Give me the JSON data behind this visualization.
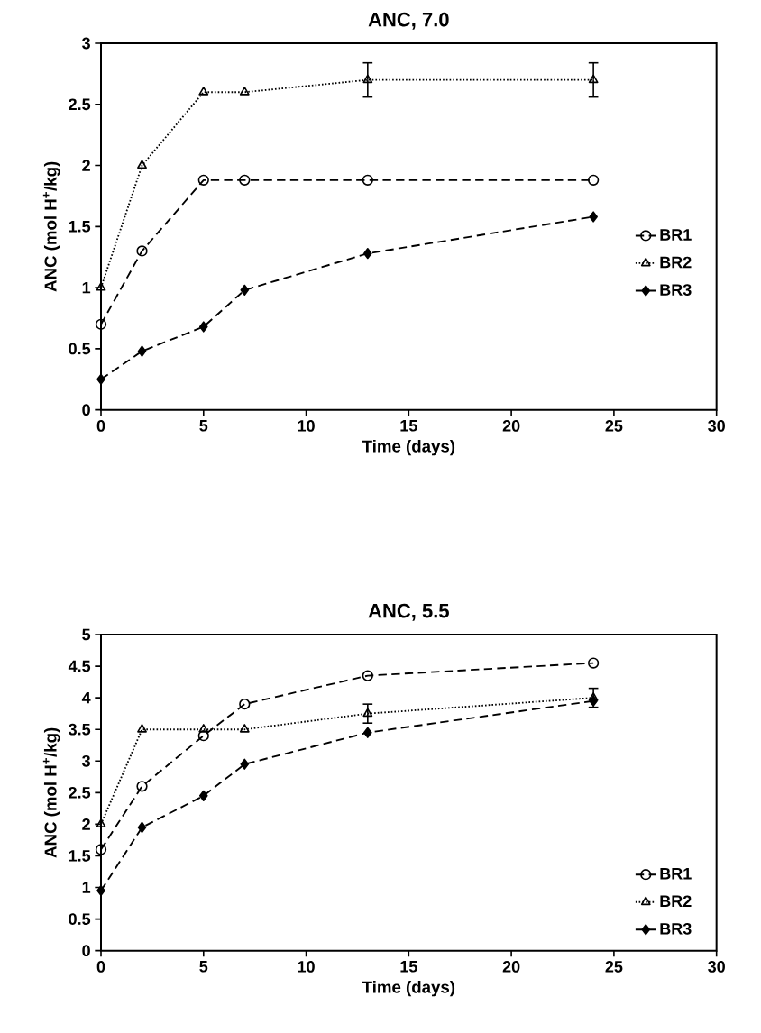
{
  "chart_data": [
    {
      "type": "line",
      "title": "ANC, 7.0",
      "xlabel": "Time (days)",
      "ylabel": "ANC (mol H$^{+}$/kg)",
      "x": [
        0,
        2,
        5,
        7,
        13,
        24
      ],
      "xlim": [
        0,
        30
      ],
      "xticks": [
        0,
        5,
        10,
        15,
        20,
        25,
        30
      ],
      "ylim": [
        0,
        3
      ],
      "yticks": [
        0,
        0.5,
        1,
        1.5,
        2,
        2.5,
        3
      ],
      "grid": false,
      "legend": "right",
      "series": [
        {
          "name": "BR1",
          "color": "#000000",
          "marker": "circle",
          "line_style": "dashed",
          "values": [
            0.7,
            1.3,
            1.88,
            1.88,
            1.88,
            1.88
          ]
        },
        {
          "name": "BR2",
          "color": "#000000",
          "marker": "triangle",
          "line_style": "dotted",
          "values": [
            1.0,
            2.0,
            2.6,
            2.6,
            2.7,
            2.7
          ],
          "errors": [
            null,
            null,
            null,
            null,
            0.14,
            0.14
          ]
        },
        {
          "name": "BR3",
          "color": "#000000",
          "marker": "diamond",
          "line_style": "dashed",
          "values": [
            0.25,
            0.48,
            0.68,
            0.98,
            1.28,
            1.58
          ]
        }
      ]
    },
    {
      "type": "line",
      "title": "ANC, 5.5",
      "xlabel": "Time (days)",
      "ylabel": "ANC (mol H$^{+}$/kg)",
      "x": [
        0,
        2,
        5,
        7,
        13,
        24
      ],
      "xlim": [
        0,
        30
      ],
      "xticks": [
        0,
        5,
        10,
        15,
        20,
        25,
        30
      ],
      "ylim": [
        0,
        5
      ],
      "yticks": [
        0,
        0.5,
        1,
        1.5,
        2,
        2.5,
        3,
        3.5,
        4,
        4.5,
        5
      ],
      "grid": false,
      "legend": "bottom right",
      "series": [
        {
          "name": "BR1",
          "color": "#000000",
          "marker": "circle",
          "line_style": "dashed",
          "values": [
            1.6,
            2.6,
            3.4,
            3.9,
            4.35,
            4.55
          ]
        },
        {
          "name": "BR2",
          "color": "#000000",
          "marker": "triangle",
          "line_style": "dotted",
          "values": [
            2.0,
            3.5,
            3.5,
            3.5,
            3.75,
            4.0
          ],
          "errors": [
            null,
            null,
            null,
            null,
            0.15,
            0.15
          ]
        },
        {
          "name": "BR3",
          "color": "#000000",
          "marker": "diamond",
          "line_style": "dashed",
          "values": [
            0.95,
            1.95,
            2.45,
            2.95,
            3.45,
            3.95
          ]
        }
      ]
    }
  ]
}
